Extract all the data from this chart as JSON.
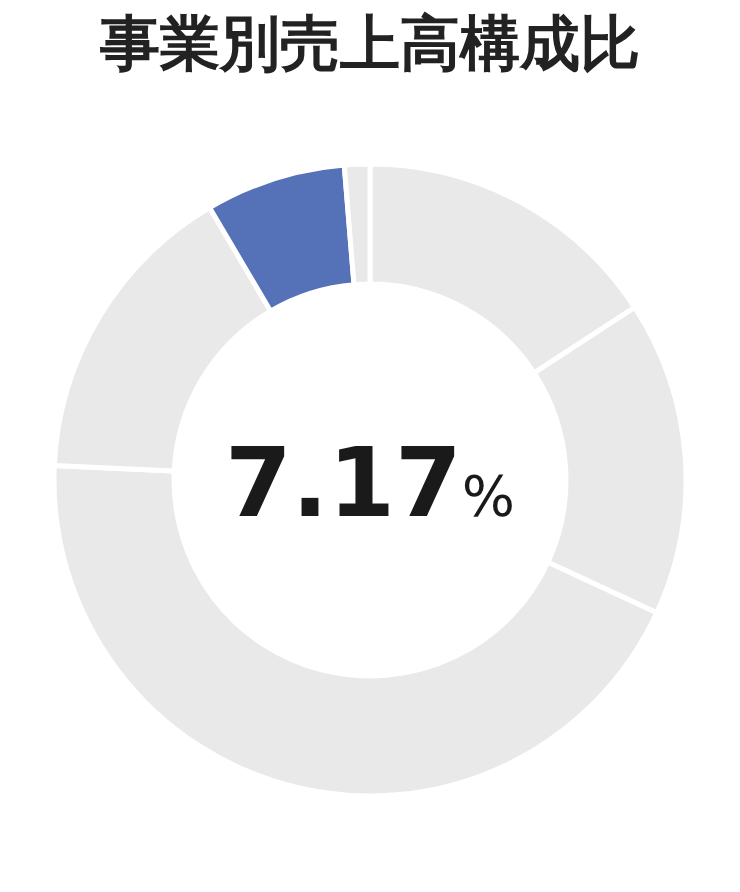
{
  "chart_data": {
    "type": "donut",
    "title": "事業別売上高構成比",
    "categories": [
      null,
      null,
      null,
      null,
      null,
      null
    ],
    "values": [
      15.8,
      16.1,
      43.83,
      15.8,
      7.17,
      1.3
    ],
    "colors": [
      "#e8e9e8",
      "#e8e9e8",
      "#e8e9e8",
      "#e8e9e8",
      "#5572b8",
      "#e8e9e8"
    ],
    "annotations": [
      "7.17%"
    ]
  }
}
